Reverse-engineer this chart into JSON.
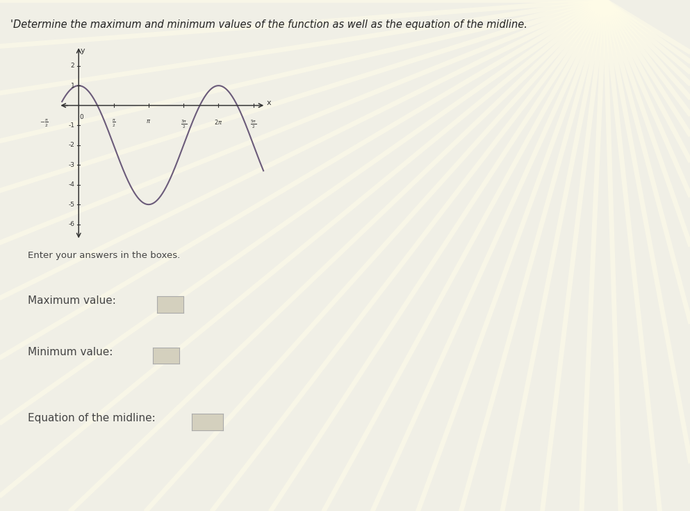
{
  "title": "'Determine the maximum and minimum values of the function as well as the equation of the midline.",
  "subtitle_instruction": "Enter your answers in the boxes.",
  "label_maximum": "Maximum value:",
  "label_minimum": "Minimum value:",
  "label_midline": "Equation of the midline:",
  "bg_color": "#f0efe6",
  "graph_bg": "#ede9dc",
  "curve_color": "#6b5b7a",
  "axis_color": "#333333",
  "amplitude": 3,
  "vertical_shift": -2,
  "x_range_start": -0.9,
  "x_range_end": 8.4,
  "y_range_min": -6.8,
  "y_range_max": 3.0,
  "x_ticks": [
    -1.5707963,
    0.0,
    1.5707963,
    3.14159265,
    4.71238898,
    6.28318531,
    7.85398163
  ],
  "x_tick_labels": [
    "-\\frac{\\pi}{2}",
    "0",
    "\\frac{\\pi}{2}",
    "\\pi",
    "\\frac{3\\pi}{2}",
    "2\\pi",
    "\\frac{5\\pi}{2}"
  ],
  "y_ticks": [
    -6,
    -5,
    -4,
    -3,
    -2,
    -1,
    1,
    2
  ],
  "left_border_color": "#7b5ea7",
  "box_facecolor": "#d4d0be",
  "box_edgecolor": "#aaaaaa",
  "ray_color": "#f8f6ee",
  "text_color": "#444444",
  "title_color": "#222222"
}
